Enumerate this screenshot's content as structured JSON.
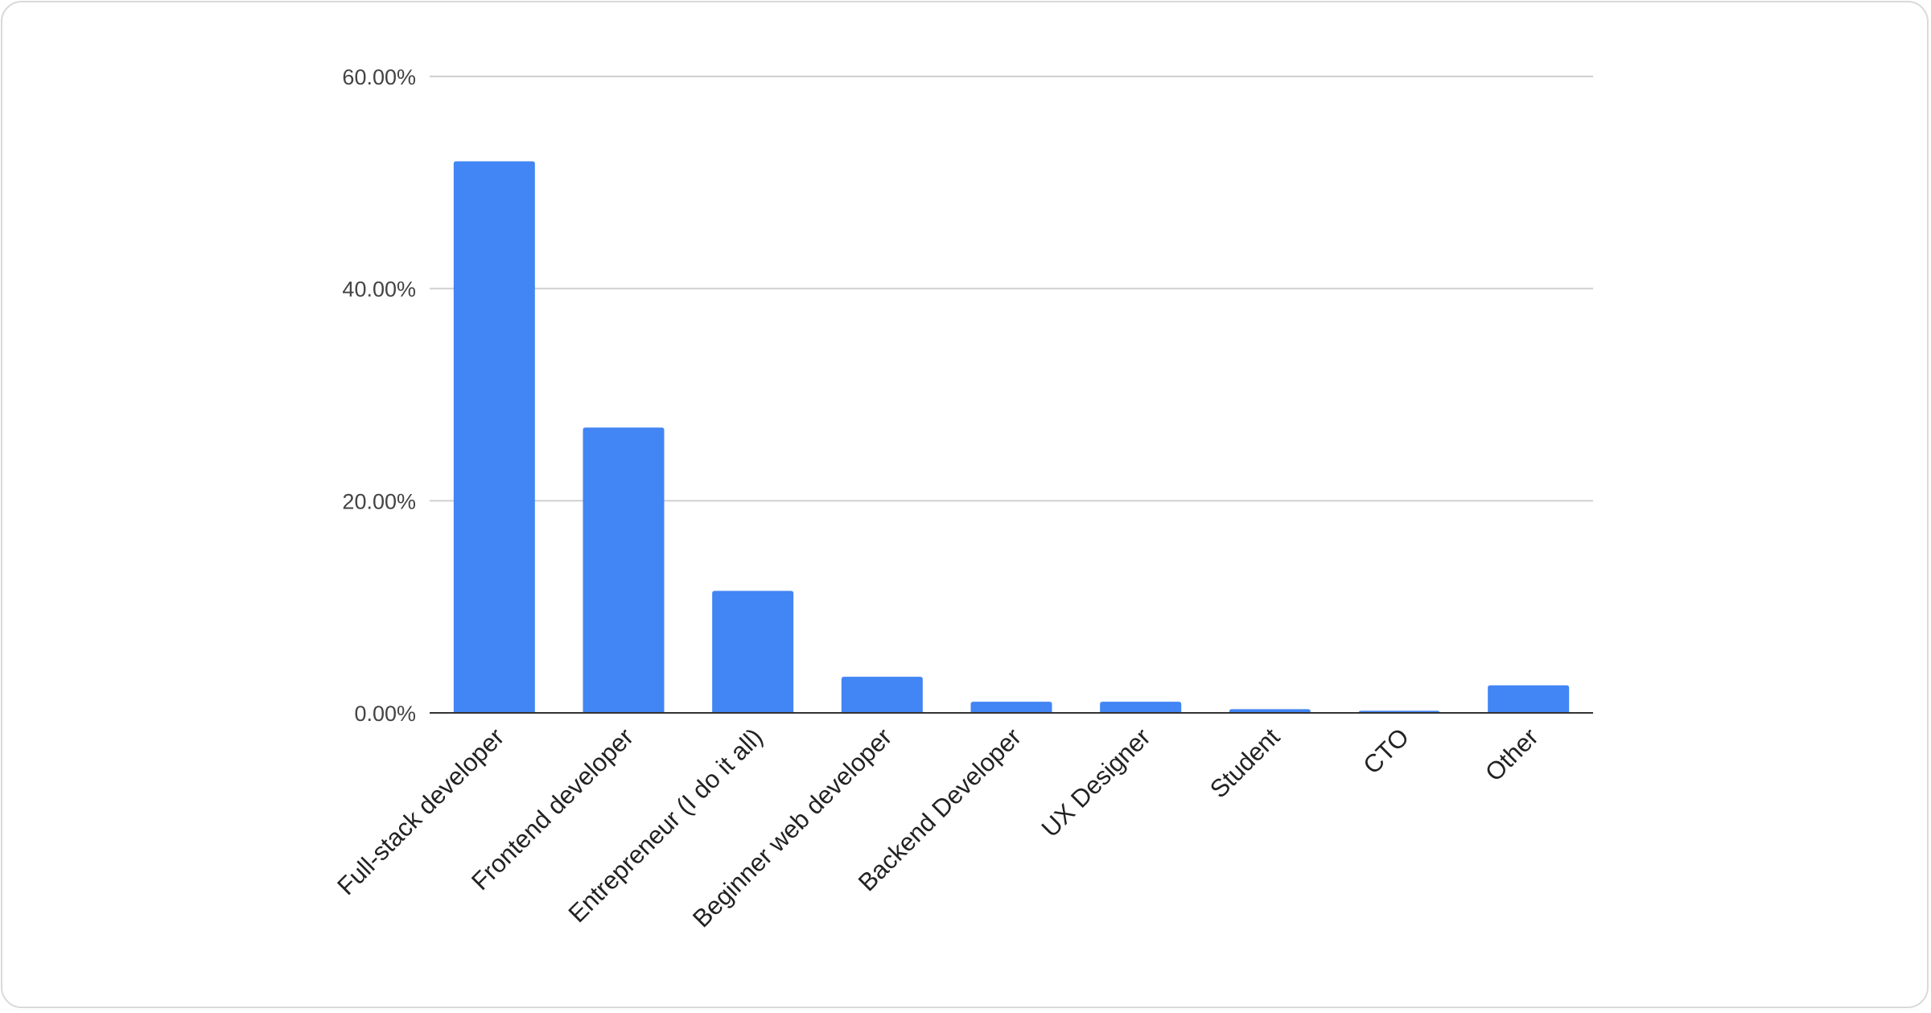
{
  "chart_data": {
    "type": "bar",
    "title": "",
    "xlabel": "",
    "ylabel": "",
    "categories": [
      "Full-stack developer",
      "Frontend developer",
      "Entrepreneur (I do it all)",
      "Beginner web developer",
      "Backend Developer",
      "UX Designer",
      "Student",
      "CTO",
      "Other"
    ],
    "values": [
      52.0,
      26.9,
      11.5,
      3.4,
      1.05,
      1.05,
      0.35,
      0.2,
      2.6
    ],
    "ylim": [
      0,
      60
    ],
    "yticks": [
      0,
      20,
      40,
      60
    ],
    "ytick_labels": [
      "0.00%",
      "20.00%",
      "40.00%",
      "60.00%"
    ],
    "grid": true,
    "legend": "none",
    "bar_color": "#4285f4"
  }
}
